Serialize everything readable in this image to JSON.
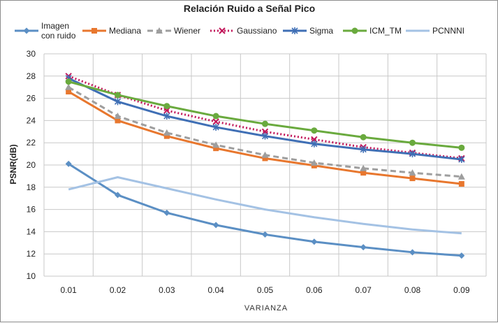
{
  "chart_data": {
    "type": "line",
    "title": "Relación Ruido a Señal Pico",
    "xlabel": "VARIANZA",
    "ylabel": "PSNR(dB)",
    "categories": [
      "0.01",
      "0.02",
      "0.03",
      "0.04",
      "0.05",
      "0.06",
      "0.07",
      "0.08",
      "0.09"
    ],
    "ylim": [
      10,
      30
    ],
    "yticks": [
      10,
      12,
      14,
      16,
      18,
      20,
      22,
      24,
      26,
      28,
      30
    ],
    "grid": true,
    "legend_position": "top",
    "series": [
      {
        "name": "Imagen con ruido",
        "legend_lines": [
          "Imagen",
          "con ruido"
        ],
        "color": "#5b8fc4",
        "dash": "",
        "marker": "diamond",
        "values": [
          20.1,
          17.3,
          15.7,
          14.6,
          13.75,
          13.1,
          12.6,
          12.15,
          11.85
        ]
      },
      {
        "name": "Mediana",
        "legend_lines": [
          "Mediana"
        ],
        "color": "#e8772e",
        "dash": "",
        "marker": "square",
        "values": [
          26.6,
          24.0,
          22.6,
          21.5,
          20.6,
          19.95,
          19.3,
          18.8,
          18.3
        ]
      },
      {
        "name": "Wiener",
        "legend_lines": [
          "Wiener"
        ],
        "color": "#9e9e9e",
        "dash": "8,5",
        "marker": "triangle",
        "values": [
          27.0,
          24.4,
          22.9,
          21.8,
          20.9,
          20.2,
          19.7,
          19.3,
          18.95
        ]
      },
      {
        "name": "Gaussiano",
        "legend_lines": [
          "Gaussiano"
        ],
        "color": "#c2185b",
        "dash": "2,3",
        "marker": "x",
        "values": [
          28.0,
          26.3,
          24.9,
          23.9,
          23.0,
          22.3,
          21.6,
          21.1,
          20.6
        ]
      },
      {
        "name": "Sigma",
        "legend_lines": [
          "Sigma"
        ],
        "color": "#3f6fb5",
        "dash": "",
        "marker": "star",
        "values": [
          27.8,
          25.7,
          24.4,
          23.4,
          22.6,
          21.9,
          21.4,
          21.0,
          20.5
        ]
      },
      {
        "name": "ICM_TM",
        "legend_lines": [
          "ICM_TM"
        ],
        "color": "#6aaa3e",
        "dash": "",
        "marker": "circle",
        "values": [
          27.5,
          26.3,
          25.3,
          24.4,
          23.7,
          23.1,
          22.5,
          22.0,
          21.55
        ]
      },
      {
        "name": "PCNNNI",
        "legend_lines": [
          "PCNNNI"
        ],
        "color": "#a4c2e4",
        "dash": "",
        "marker": "none",
        "values": [
          17.8,
          18.9,
          17.9,
          16.9,
          16.0,
          15.3,
          14.7,
          14.2,
          13.85
        ]
      }
    ]
  }
}
